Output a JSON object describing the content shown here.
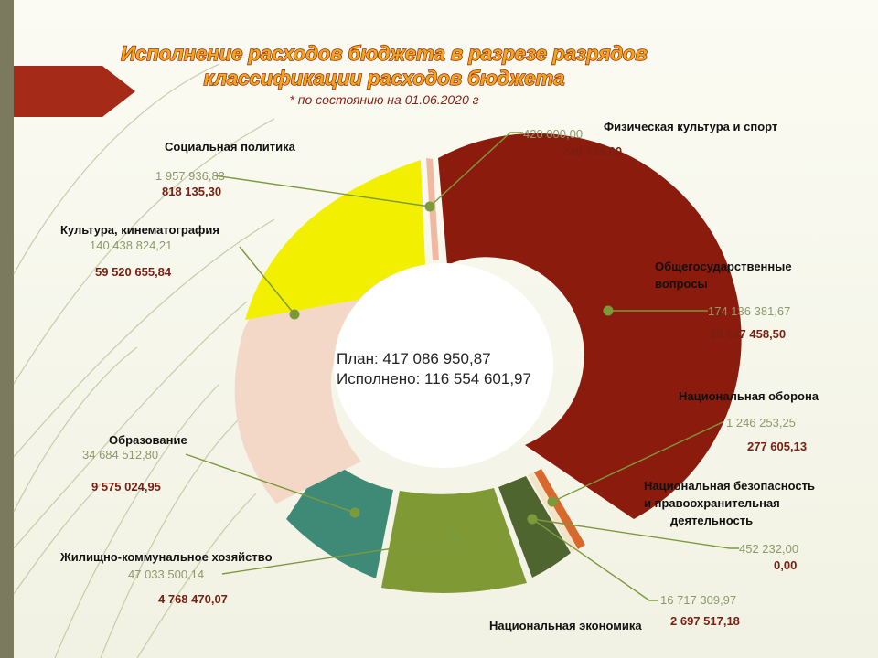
{
  "title_line1": "Исполнение расходов бюджета в разрезе разрядов",
  "title_line2": "классификации расходов бюджета",
  "subtitle": "* по состоянию на 01.06.2020 г",
  "center": {
    "plan_text": "План: 417 086 950,87",
    "executed_text": "Исполнено: 116 554 601,97"
  },
  "colors": {
    "accent_title": "#f5a41b",
    "plan_text": "#8c9a6a",
    "executed_text": "#7a1e10",
    "leader_line": "#7d9a3a"
  },
  "chart_data": {
    "type": "pie",
    "variant": "donut",
    "series": [
      {
        "name": "Физическая культура и спорт",
        "plan_label": "420 000,00",
        "executed_label": "249 735,00",
        "plan": 420000.0,
        "executed": 249735.0,
        "color": "#f0b8a0"
      },
      {
        "name": "Общегосударственные вопросы",
        "plan_label": "174 136 381,67",
        "executed_label": "38 647 458,50",
        "plan": 174136381.67,
        "executed": 38647458.5,
        "color": "#8b1c0d"
      },
      {
        "name": "Национальная оборона",
        "plan_label": "1 246 253,25",
        "executed_label": "277 605,13",
        "plan": 1246253.25,
        "executed": 277605.13,
        "color": "#d9682f"
      },
      {
        "name": "Национальная безопасность и правоохранительная деятельность",
        "plan_label": "452 232,00",
        "executed_label": "0,00",
        "plan": 452232.0,
        "executed": 0.0,
        "color": "#f1e4c8"
      },
      {
        "name": "Национальная экономика",
        "plan_label": "16 717 309,97",
        "executed_label": "2 697 517,18",
        "plan": 16717309.97,
        "executed": 2697517.18,
        "color": "#4f6530"
      },
      {
        "name": "Жилищно-коммунальное хозяйство",
        "plan_label": "47 033 500,14",
        "executed_label": "4 768 470,07",
        "plan": 47033500.14,
        "executed": 4768470.07,
        "color": "#7f9a35"
      },
      {
        "name": "Образование",
        "plan_label": "34 684 512,80",
        "executed_label": "9 575 024,95",
        "plan": 34684512.8,
        "executed": 9575024.95,
        "color": "#3f8a77"
      },
      {
        "name": "Культура, кинематография",
        "plan_label": "140 438 824,21",
        "executed_label": "59 520 655,84",
        "plan": 140438824.21,
        "executed": 59520655.84,
        "color": "#f3d8c8"
      },
      {
        "name": "Социальная политика",
        "plan_label": "1 957 936,83",
        "executed_label": "818 135,30",
        "plan": 1957936.83,
        "executed": 818135.3,
        "color": "#f2f000"
      }
    ]
  }
}
